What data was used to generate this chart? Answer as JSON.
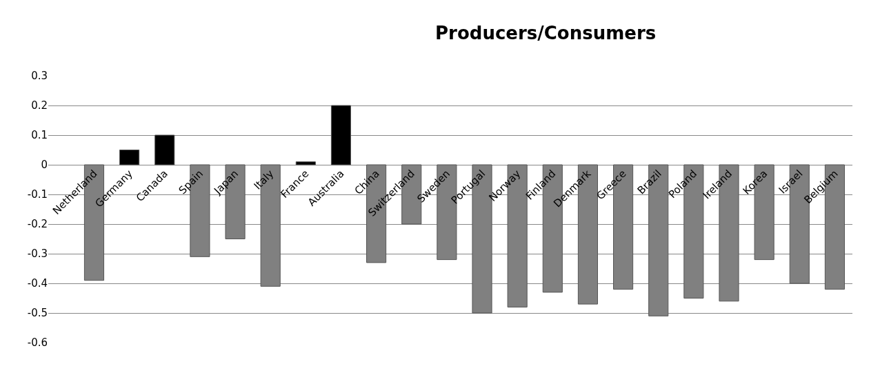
{
  "chart_data": {
    "type": "bar",
    "title": "Producers/Consumers",
    "categories": [
      "Netherland",
      "Germany",
      "Canada",
      "Spain",
      "Japan",
      "Italy",
      "France",
      "Australia",
      "China",
      "Switzerland",
      "Sweden",
      "Portugal",
      "Norway",
      "Finland",
      "Denmark",
      "Greece",
      "Brazil",
      "Poland",
      "Ireland",
      "Korea",
      "Israel",
      "Belgium"
    ],
    "values": [
      -0.39,
      0.05,
      0.1,
      -0.31,
      -0.25,
      -0.41,
      0.01,
      0.2,
      -0.33,
      -0.2,
      -0.32,
      -0.5,
      -0.48,
      -0.43,
      -0.47,
      -0.42,
      -0.51,
      -0.45,
      -0.46,
      -0.32,
      -0.4,
      -0.42
    ],
    "colors": [
      "#808080",
      "#000000",
      "#000000",
      "#808080",
      "#808080",
      "#808080",
      "#000000",
      "#000000",
      "#808080",
      "#808080",
      "#808080",
      "#808080",
      "#808080",
      "#808080",
      "#808080",
      "#808080",
      "#808080",
      "#808080",
      "#808080",
      "#808080",
      "#808080",
      "#808080"
    ],
    "ylim": [
      -0.6,
      0.3
    ],
    "yticks": [
      -0.6,
      -0.5,
      -0.4,
      -0.3,
      -0.2,
      -0.1,
      0,
      0.1,
      0.2,
      0.3
    ],
    "grid": "y"
  }
}
